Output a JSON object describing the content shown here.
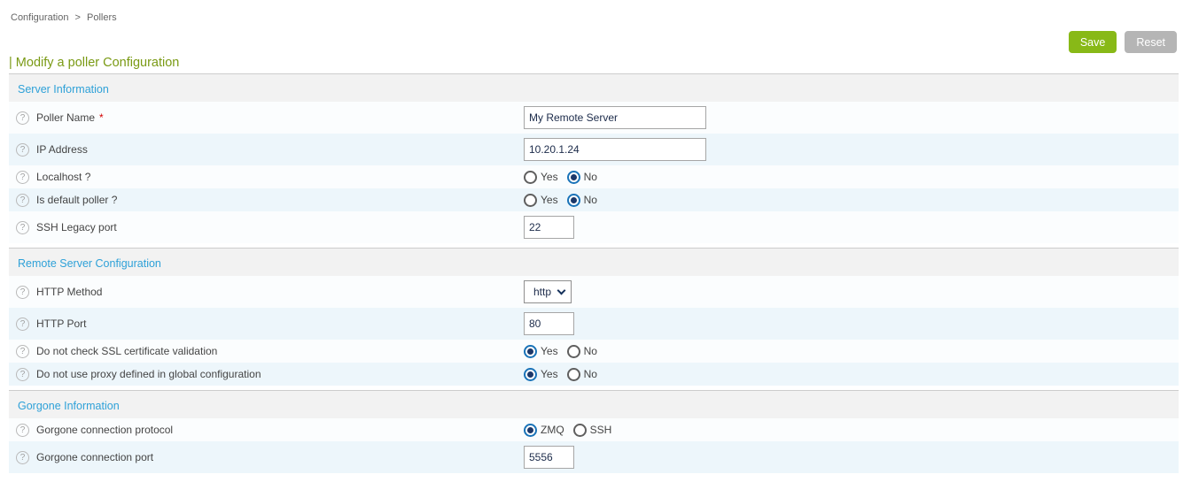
{
  "breadcrumb": {
    "items": [
      "Configuration",
      "Pollers"
    ],
    "separator": ">"
  },
  "toolbar": {
    "save_label": "Save",
    "reset_label": "Reset"
  },
  "page": {
    "title": "| Modify a poller Configuration"
  },
  "icons": {
    "help": "?",
    "required": "*"
  },
  "colors": {
    "save_button_bg": "#88b917",
    "reset_button_bg": "#b5b5b5",
    "title_text": "#7a9a14",
    "section_title_text": "#2ea1d8",
    "section_header_bg": "#f2f2f2",
    "row_bg": "#fbfdfe",
    "row_alt_bg": "#edf6fb",
    "radio_selected": "#1a73b8",
    "radio_dot": "#1c3869",
    "required_asterisk": "#d40000",
    "breadcrumb_text": "#666666"
  },
  "sections": [
    {
      "title": "Server Information",
      "rows": [
        {
          "label": "Poller Name",
          "required": true,
          "type": "text",
          "value": "My Remote Server",
          "size": "wide"
        },
        {
          "label": "IP Address",
          "required": false,
          "type": "text",
          "value": "10.20.1.24",
          "size": "wide"
        },
        {
          "label": "Localhost ?",
          "required": false,
          "type": "radio",
          "options": [
            "Yes",
            "No"
          ],
          "selected": "No"
        },
        {
          "label": "Is default poller ?",
          "required": false,
          "type": "radio",
          "options": [
            "Yes",
            "No"
          ],
          "selected": "No"
        },
        {
          "label": "SSH Legacy port",
          "required": false,
          "type": "text",
          "value": "22",
          "size": "small"
        }
      ]
    },
    {
      "title": "Remote Server Configuration",
      "rows": [
        {
          "label": "HTTP Method",
          "required": false,
          "type": "select",
          "value": "http"
        },
        {
          "label": "HTTP Port",
          "required": false,
          "type": "text",
          "value": "80",
          "size": "small"
        },
        {
          "label": "Do not check SSL certificate validation",
          "required": false,
          "type": "radio",
          "options": [
            "Yes",
            "No"
          ],
          "selected": "Yes"
        },
        {
          "label": "Do not use proxy defined in global configuration",
          "required": false,
          "type": "radio",
          "options": [
            "Yes",
            "No"
          ],
          "selected": "Yes"
        }
      ]
    },
    {
      "title": "Gorgone Information",
      "rows": [
        {
          "label": "Gorgone connection protocol",
          "required": false,
          "type": "radio",
          "options": [
            "ZMQ",
            "SSH"
          ],
          "selected": "ZMQ"
        },
        {
          "label": "Gorgone connection port",
          "required": false,
          "type": "text",
          "value": "5556",
          "size": "small"
        }
      ]
    }
  ]
}
